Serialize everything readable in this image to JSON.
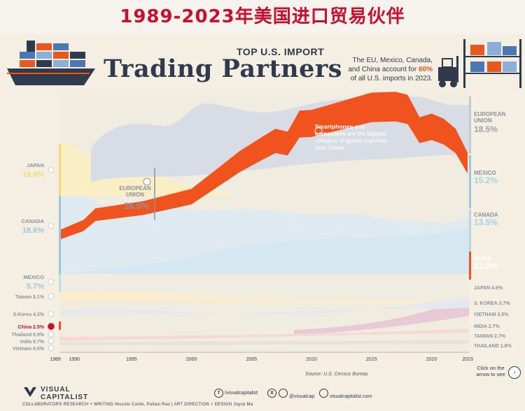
{
  "cn_title": "1989-2023年美国进口贸易伙伴",
  "header": {
    "kicker": "TOP U.S. IMPORT",
    "headline": "Trading Partners",
    "subtitle_pre": "The EU, Mexico, Canada, and China account for ",
    "subtitle_bold": "60%",
    "subtitle_post": " of all U.S. imports in 2023."
  },
  "annotation": {
    "bold1": "Smartphones",
    "mid1": " and ",
    "bold2": "computers",
    "rest": " are the biggest category of goods imported from China."
  },
  "eu_inline": {
    "name_1": "EUROPEAN",
    "name_2": "UNION",
    "value": "18.5%"
  },
  "left_labels": [
    {
      "name": "JAPAN",
      "value": "19.8%"
    },
    {
      "name": "CANADA",
      "value": "18.6%"
    },
    {
      "name": "MEXICO",
      "value": "5.7%"
    },
    {
      "name": "Taiwan",
      "value": "5.1%"
    },
    {
      "name": "S.Korea",
      "value": "4.2%"
    },
    {
      "name": "China",
      "value": "2.5%"
    },
    {
      "name": "Thailand",
      "value": "0.9%"
    },
    {
      "name": "India",
      "value": "0.7%"
    },
    {
      "name": "Vietnam",
      "value": "0.0%"
    }
  ],
  "right_labels": [
    {
      "name_1": "EUROPEAN",
      "name_2": "UNION",
      "value": "18.5%"
    },
    {
      "name_1": "MEXICO",
      "value": "15.2%"
    },
    {
      "name_1": "CANADA",
      "value": "13.5%"
    },
    {
      "name_1": "CHINA",
      "value": "13.2%"
    },
    {
      "name_1": "JAPAN",
      "value": "4.6%"
    },
    {
      "name_1": "S. KOREA",
      "value": "3.7%"
    },
    {
      "name_1": "VIETNAM",
      "value": "3.5%"
    },
    {
      "name_1": "INDIA",
      "value": "2.7%"
    },
    {
      "name_1": "TAIWAN",
      "value": "2.7%"
    },
    {
      "name_1": "THAILAND",
      "value": "1.8%"
    }
  ],
  "footer": {
    "logo_line1": "VISUAL",
    "logo_line2": "CAPITALIST",
    "source": "Source: U.S. Census Bureau",
    "social_fb": "/visualcapitalist",
    "social_x": "@visualcap",
    "social_web": "visualcapitalist.com",
    "credits": "COLLABORATORS   RESEARCH + WRITING Niccolo Conte, Pallavi Rao   |   ART DIRECTION + DESIGN  Joyce Ma",
    "click_note": "Click on the arrow to see",
    "arrow": "›"
  },
  "colors": {
    "china": "#f0531e",
    "eu": "#d6dbe3",
    "mexico": "#d4e9f3",
    "canada": "#dde9ef",
    "japan": "#faf0c4",
    "background": "#f4efe2"
  },
  "chart_data": {
    "type": "area",
    "x_ticks": [
      "1989",
      "1990",
      "1995",
      "2000",
      "2005",
      "2010",
      "2015",
      "2020",
      "2023"
    ],
    "series": [
      {
        "name": "China",
        "points": [
          [
            1989,
            2.5
          ],
          [
            1991,
            3.9
          ],
          [
            1992,
            5.5
          ],
          [
            1996,
            6.5
          ],
          [
            2000,
            8.2
          ],
          [
            2002,
            10.8
          ],
          [
            2004,
            13.4
          ],
          [
            2006,
            15.5
          ],
          [
            2007,
            16.5
          ],
          [
            2008,
            16.1
          ],
          [
            2009,
            19.0
          ],
          [
            2010,
            19.1
          ],
          [
            2015,
            21.5
          ],
          [
            2017,
            21.6
          ],
          [
            2018,
            21.2
          ],
          [
            2019,
            18.1
          ],
          [
            2020,
            18.6
          ],
          [
            2021,
            17.9
          ],
          [
            2022,
            16.5
          ],
          [
            2023,
            13.2
          ]
        ]
      }
    ],
    "start_values": {
      "Japan": 19.8,
      "Canada": 18.6,
      "Mexico": 5.7,
      "Taiwan": 5.1,
      "S.Korea": 4.2,
      "China": 2.5,
      "Thailand": 0.9,
      "India": 0.7,
      "Vietnam": 0.0
    },
    "end_values": {
      "European Union": 18.5,
      "Mexico": 15.2,
      "Canada": 13.5,
      "China": 13.2,
      "Japan": 4.6,
      "S. Korea": 3.7,
      "Vietnam": 3.5,
      "India": 2.7,
      "Taiwan": 2.7,
      "Thailand": 1.8
    },
    "xlim": [
      1989,
      2023
    ]
  }
}
